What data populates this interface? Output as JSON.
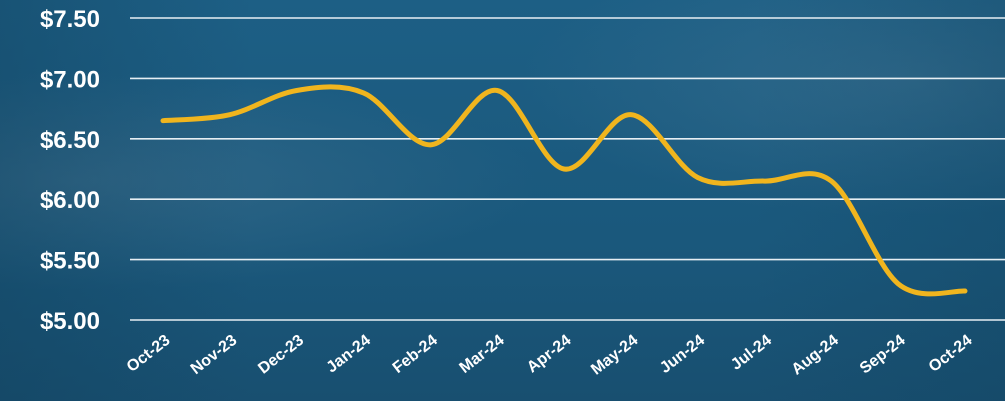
{
  "chart_data": {
    "type": "line",
    "categories": [
      "Oct-23",
      "Nov-23",
      "Dec-23",
      "Jan-24",
      "Feb-24",
      "Mar-24",
      "Apr-24",
      "May-24",
      "Jun-24",
      "Jul-24",
      "Aug-24",
      "Sep-24",
      "Oct-24"
    ],
    "series": [
      {
        "values": [
          6.65,
          6.7,
          6.9,
          6.88,
          6.45,
          6.9,
          6.25,
          6.7,
          6.18,
          6.15,
          6.15,
          5.3,
          5.24
        ],
        "color": "#f0b51e"
      }
    ],
    "y_ticks": [
      {
        "value": 5.0,
        "label": "$5.00"
      },
      {
        "value": 5.5,
        "label": "$5.50"
      },
      {
        "value": 6.0,
        "label": "$6.00"
      },
      {
        "value": 6.5,
        "label": "$6.50"
      },
      {
        "value": 7.0,
        "label": "$7.00"
      },
      {
        "value": 7.5,
        "label": "$7.50"
      }
    ],
    "ylim": [
      5.0,
      7.5
    ],
    "grid": true,
    "colors": {
      "background": "#1b5a7e",
      "grid": "#e6eef3",
      "text": "#ffffff",
      "line": "#f0b51e"
    }
  }
}
